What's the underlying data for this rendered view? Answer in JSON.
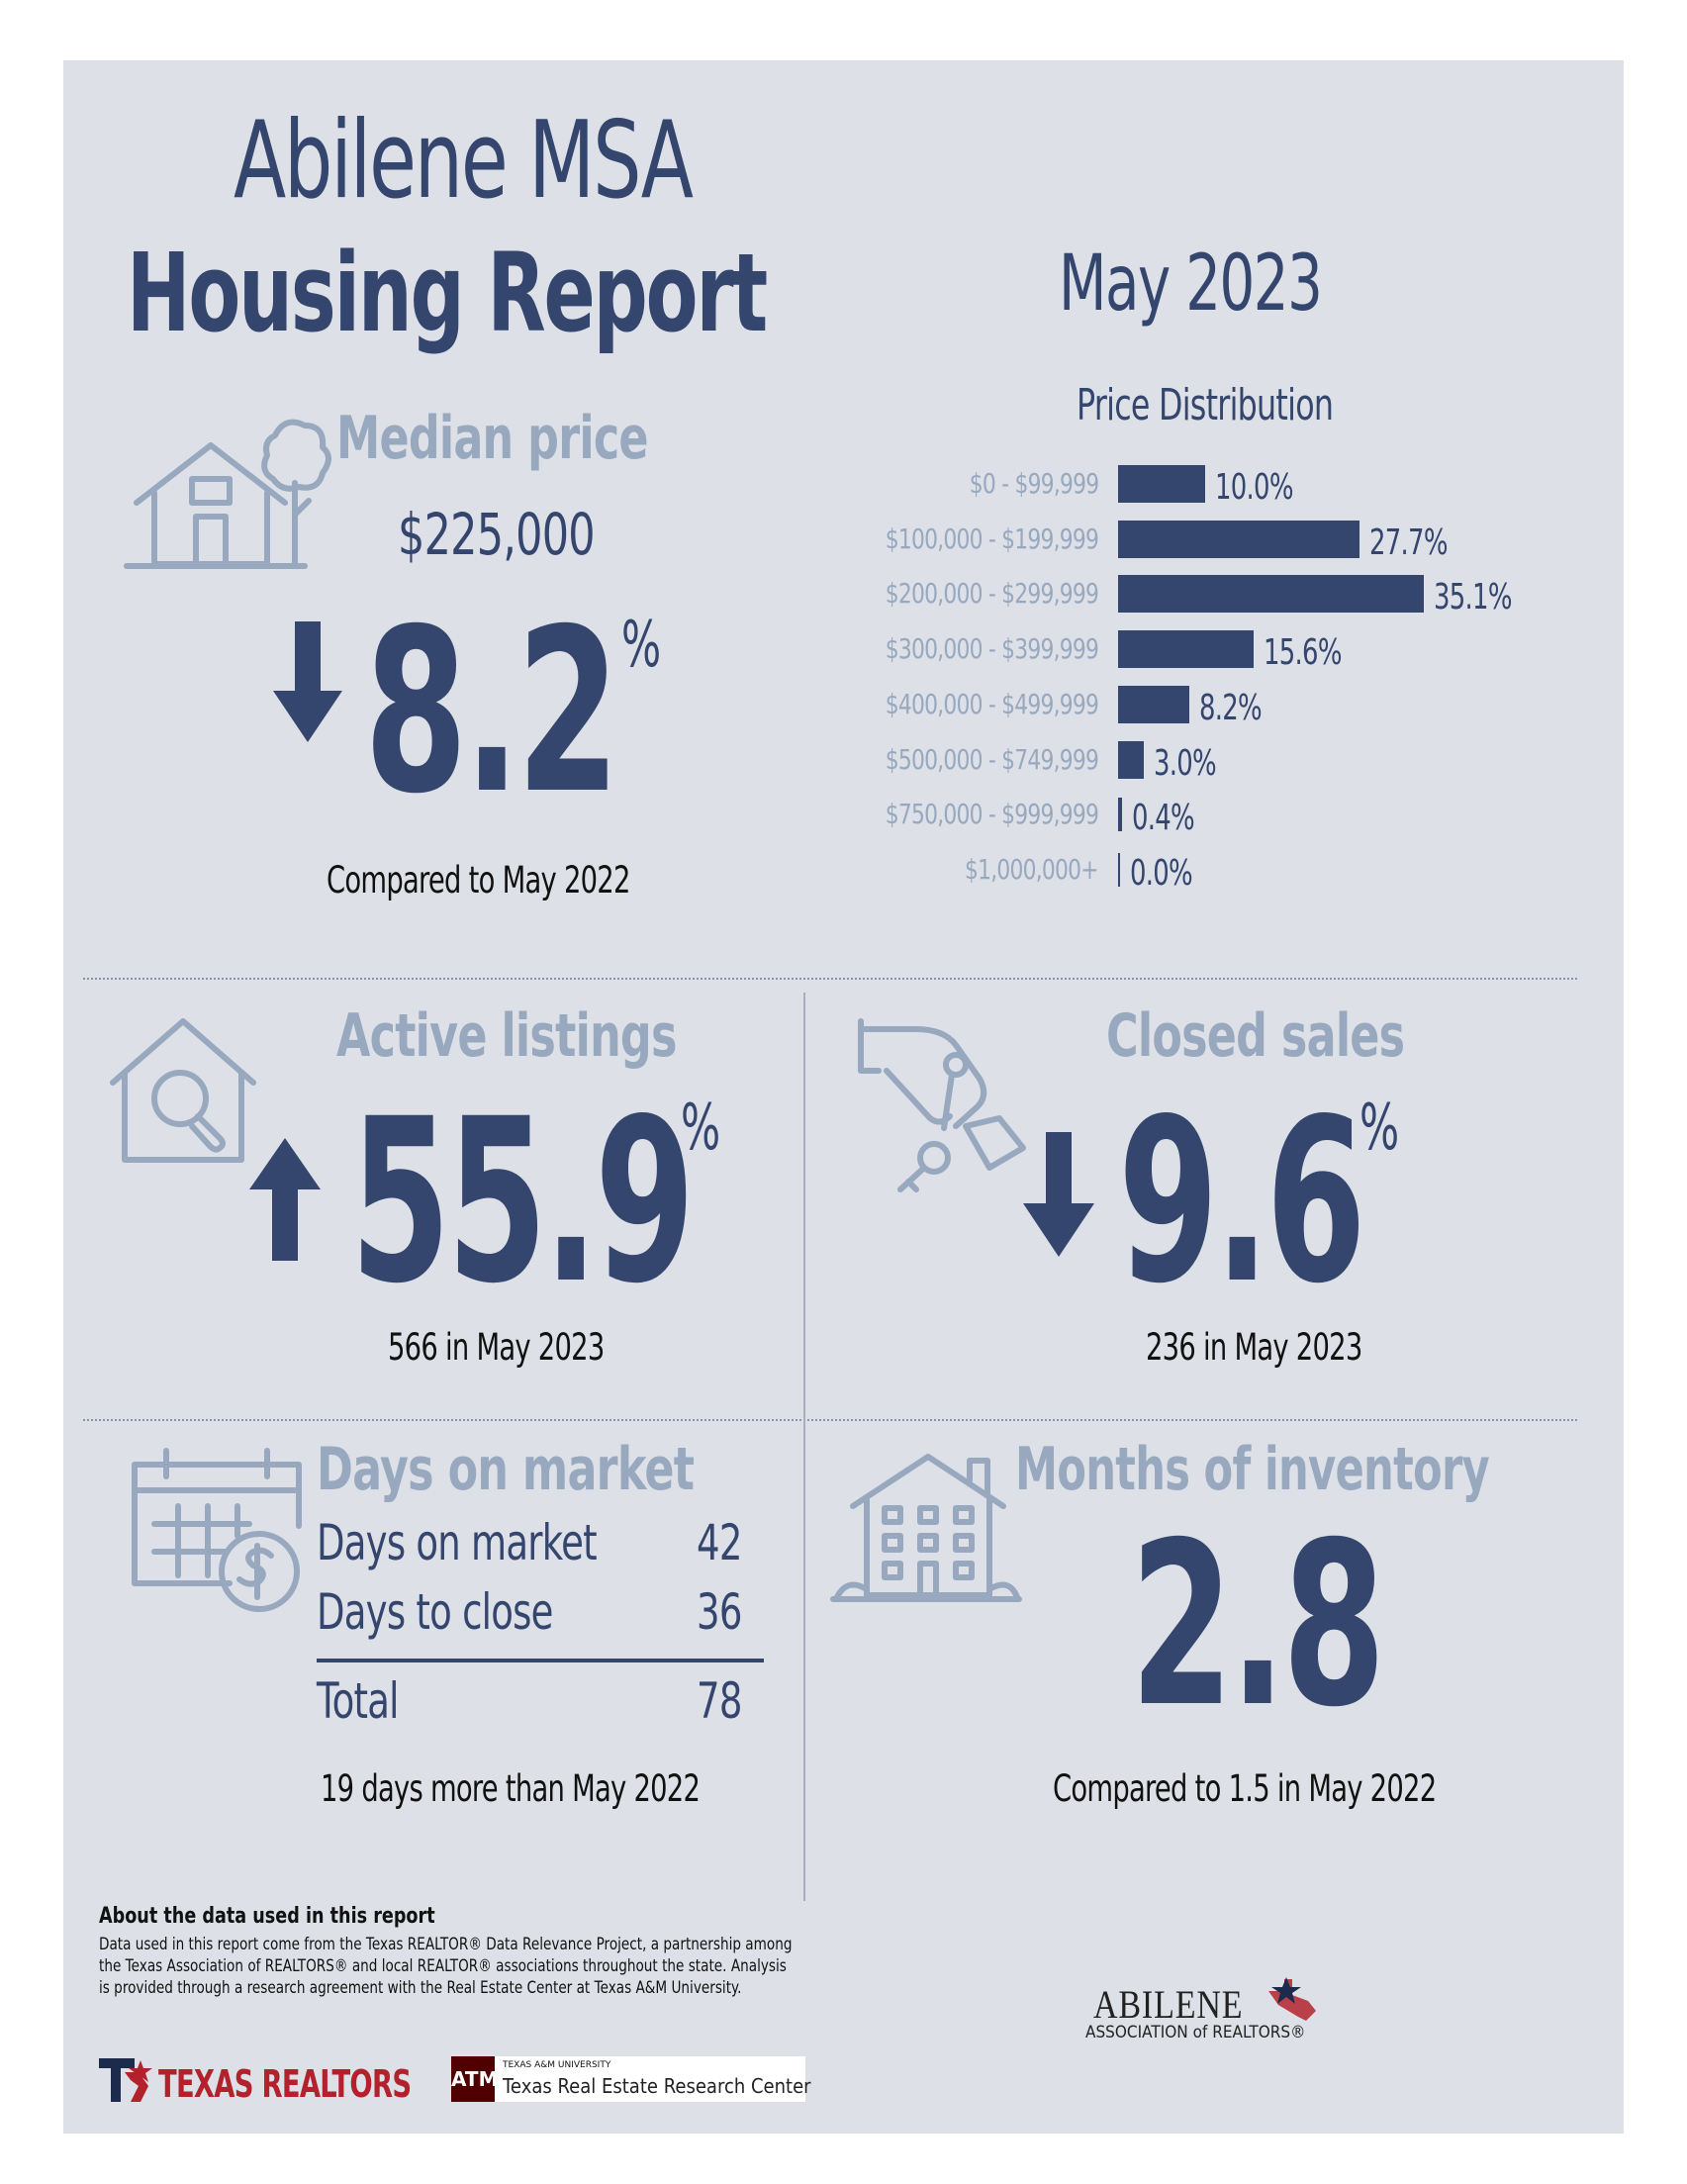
{
  "header": {
    "title_line1": "Abilene MSA",
    "title_line2": "Housing Report",
    "month": "May 2023"
  },
  "median_price": {
    "title": "Median price",
    "value": "$225,000",
    "change": "8.2",
    "change_unit": "%",
    "direction": "down",
    "caption": "Compared to May 2022"
  },
  "price_distribution": {
    "title": "Price Distribution",
    "chart_data": {
      "type": "bar",
      "orientation": "horizontal",
      "categories": [
        "$0 - $99,999",
        "$100,000 - $199,999",
        "$200,000 - $299,999",
        "$300,000 - $399,999",
        "$400,000 - $499,999",
        "$500,000 - $749,999",
        "$750,000 - $999,999",
        "$1,000,000+"
      ],
      "values": [
        10.0,
        27.7,
        35.1,
        15.6,
        8.2,
        3.0,
        0.4,
        0.0
      ],
      "value_labels": [
        "10.0%",
        "27.7%",
        "35.1%",
        "15.6%",
        "8.2%",
        "3.0%",
        "0.4%",
        "0.0%"
      ],
      "title": "Price Distribution",
      "bar_color": "#34456e"
    }
  },
  "active_listings": {
    "title": "Active listings",
    "change": "55.9",
    "change_unit": "%",
    "direction": "up",
    "caption": "566 in May 2023"
  },
  "closed_sales": {
    "title": "Closed sales",
    "change": "9.6",
    "change_unit": "%",
    "direction": "down",
    "caption": "236 in May 2023"
  },
  "days_on_market": {
    "title": "Days on market",
    "rows": [
      {
        "label": "Days on market",
        "value": "42"
      },
      {
        "label": "Days to close",
        "value": "36"
      }
    ],
    "total_label": "Total",
    "total_value": "78",
    "caption": "19 days more than May 2022"
  },
  "months_inventory": {
    "title": "Months of inventory",
    "value": "2.8",
    "caption": "Compared to 1.5 in May 2022"
  },
  "footer": {
    "about_heading": "About the data used in this report",
    "about_body": "Data used in this report come from the Texas REALTOR® Data Relevance Project, a partnership among the Texas Association of REALTORS® and local REALTOR® associations throughout the state. Analysis is provided through a research agreement with the Real Estate Center at Texas A&M University.",
    "texas_realtors": "TEXAS REALTORS",
    "tamu_small": "TEXAS A&M UNIVERSITY",
    "tamu_big": "Texas Real Estate Research Center",
    "abilene_name": "ABILENE",
    "abilene_sub": "ASSOCIATION of REALTORS®"
  },
  "colors": {
    "navy": "#34456e",
    "grey_blue": "#97a8bf",
    "panel_bg": "#dde0e6",
    "brand_red": "#b3222c"
  }
}
